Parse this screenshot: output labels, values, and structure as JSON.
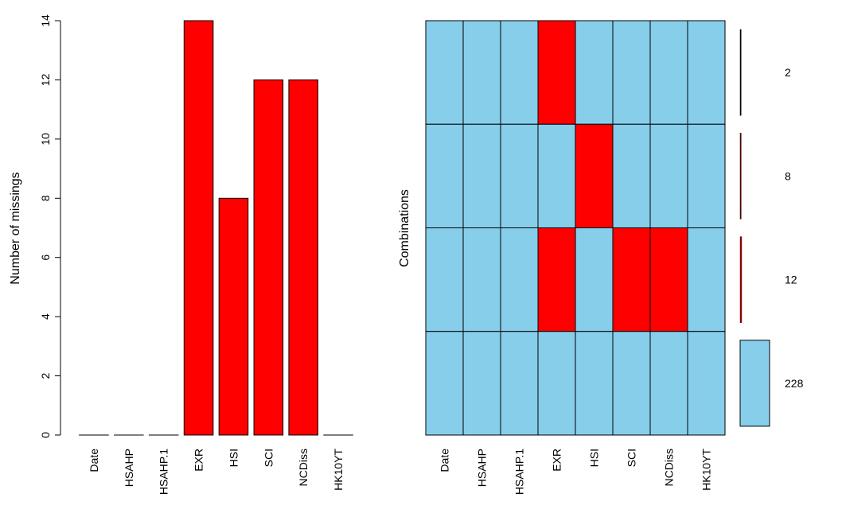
{
  "colors": {
    "missing": "#ff0000",
    "observed": "#87ceeb",
    "stroke": "#000000",
    "background": "#ffffff"
  },
  "chart_data": [
    {
      "type": "bar",
      "categories": [
        "Date",
        "HSAHP",
        "HSAHP.1",
        "EXR",
        "HSI",
        "SCI",
        "NCDiss",
        "HK10YT"
      ],
      "values": [
        0,
        0,
        0,
        14,
        8,
        12,
        12,
        0
      ],
      "ylabel": "Number of missings",
      "ylim": [
        0,
        14
      ],
      "yticks": [
        0,
        2,
        4,
        6,
        8,
        10,
        12,
        14
      ],
      "bar_color": "#ff0000"
    },
    {
      "type": "heatmap",
      "columns": [
        "Date",
        "HSAHP",
        "HSAHP.1",
        "EXR",
        "HSI",
        "SCI",
        "NCDiss",
        "HK10YT"
      ],
      "ylabel": "Combinations",
      "rows": [
        {
          "pattern": [
            0,
            0,
            0,
            1,
            0,
            0,
            0,
            0
          ],
          "count": 2
        },
        {
          "pattern": [
            0,
            0,
            0,
            0,
            1,
            0,
            0,
            0
          ],
          "count": 8
        },
        {
          "pattern": [
            0,
            0,
            0,
            1,
            0,
            1,
            1,
            0
          ],
          "count": 12
        },
        {
          "pattern": [
            0,
            0,
            0,
            0,
            0,
            0,
            0,
            0
          ],
          "count": 228
        }
      ],
      "count_labels": [
        "2",
        "8",
        "12",
        "228"
      ],
      "missing_color": "#ff0000",
      "observed_color": "#87ceeb",
      "frequency_bar_colors": [
        "#000000",
        "#4a0000",
        "#8b0000",
        "#87ceeb"
      ]
    }
  ]
}
